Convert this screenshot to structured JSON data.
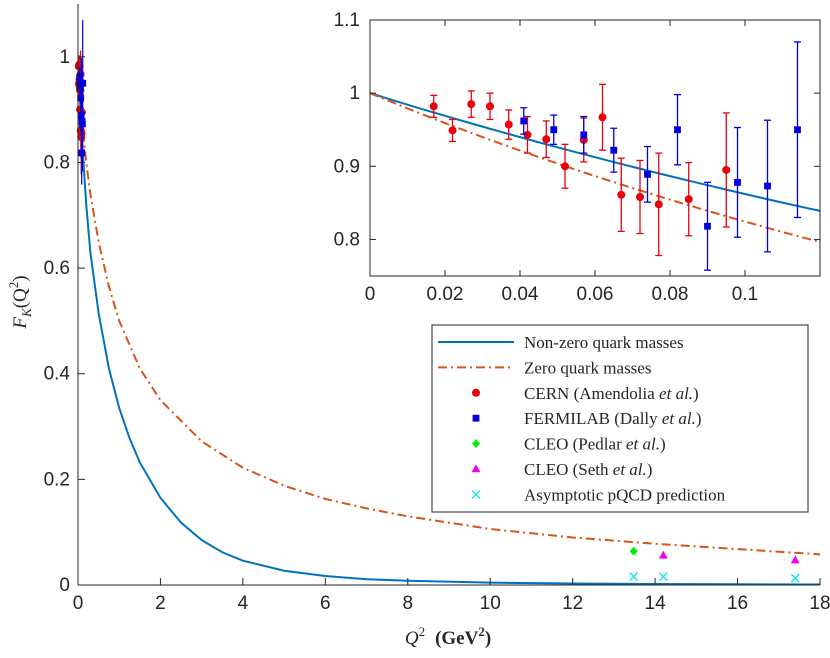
{
  "chart_data": [
    {
      "type": "line",
      "role": "main",
      "xlabel": "Q^2 (GeV^2)",
      "xlabel_parts": {
        "var": "Q",
        "exp": "2",
        "unit_open": "(GeV",
        "unit_exp": "2",
        "unit_close": ")"
      },
      "ylabel": "F_K(Q^2)",
      "ylabel_parts": {
        "f": "F",
        "sub": "K",
        "open": "(Q",
        "exp": "2",
        "close": ")"
      },
      "xlim": [
        0,
        18
      ],
      "ylim": [
        0,
        1.1
      ],
      "xticks": [
        0,
        2,
        4,
        6,
        8,
        10,
        12,
        14,
        16,
        18
      ],
      "xtick_labels": [
        "0",
        "2",
        "4",
        "6",
        "8",
        "10",
        "12",
        "14",
        "16",
        "18"
      ],
      "yticks": [
        0,
        0.2,
        0.4,
        0.6,
        0.8,
        1
      ],
      "ytick_labels": [
        "0",
        "0.2",
        "0.4",
        "0.6",
        "0.8",
        "1"
      ],
      "series": [
        {
          "name": "Non-zero quark masses",
          "style": "solid",
          "color": "#0072BD",
          "x": [
            0,
            0.1,
            0.2,
            0.3,
            0.5,
            0.75,
            1,
            1.25,
            1.5,
            2,
            2.5,
            3,
            3.5,
            4,
            5,
            6,
            7,
            8,
            10,
            12,
            14,
            16,
            18
          ],
          "y": [
            1,
            0.84,
            0.72,
            0.63,
            0.515,
            0.41,
            0.335,
            0.278,
            0.232,
            0.165,
            0.118,
            0.085,
            0.062,
            0.046,
            0.027,
            0.017,
            0.011,
            0.008,
            0.0045,
            0.0028,
            0.0019,
            0.0013,
            0.001
          ]
        },
        {
          "name": "Zero quark masses",
          "style": "dashdot",
          "color": "#D95319",
          "x": [
            0,
            0.1,
            0.2,
            0.3,
            0.5,
            0.75,
            1,
            1.5,
            2,
            3,
            4,
            5,
            6,
            7,
            8,
            10,
            12,
            14,
            16,
            18
          ],
          "y": [
            1,
            0.88,
            0.8,
            0.74,
            0.65,
            0.565,
            0.5,
            0.41,
            0.35,
            0.272,
            0.222,
            0.188,
            0.163,
            0.145,
            0.13,
            0.106,
            0.09,
            0.078,
            0.068,
            0.058
          ]
        }
      ],
      "data_points": [
        {
          "name": "CERN (Amendolia et al.)",
          "marker": "circle",
          "color": "#E8000B",
          "points": [
            [
              0.017,
              0.982
            ],
            [
              0.022,
              0.949
            ],
            [
              0.027,
              0.985
            ],
            [
              0.032,
              0.982
            ],
            [
              0.037,
              0.957
            ],
            [
              0.042,
              0.943
            ],
            [
              0.047,
              0.937
            ],
            [
              0.052,
              0.9
            ],
            [
              0.057,
              0.936
            ],
            [
              0.062,
              0.967
            ],
            [
              0.067,
              0.861
            ],
            [
              0.072,
              0.858
            ],
            [
              0.077,
              0.848
            ],
            [
              0.085,
              0.855
            ],
            [
              0.095,
              0.895
            ]
          ],
          "err": [
            0.015,
            0.015,
            0.018,
            0.018,
            0.02,
            0.025,
            0.025,
            0.03,
            0.03,
            0.045,
            0.05,
            0.05,
            0.07,
            0.05,
            0.078
          ]
        },
        {
          "name": "FERMILAB (Dally et al.)",
          "marker": "square",
          "color": "#0000E0",
          "points": [
            [
              0.041,
              0.962
            ],
            [
              0.049,
              0.95
            ],
            [
              0.057,
              0.943
            ],
            [
              0.065,
              0.922
            ],
            [
              0.074,
              0.889
            ],
            [
              0.082,
              0.95
            ],
            [
              0.09,
              0.818
            ],
            [
              0.098,
              0.878
            ],
            [
              0.106,
              0.873
            ],
            [
              0.114,
              0.95
            ]
          ],
          "err": [
            0.018,
            0.02,
            0.025,
            0.03,
            0.038,
            0.048,
            0.06,
            0.075,
            0.09,
            0.12
          ]
        },
        {
          "name": "CLEO (Pedlar et al.)",
          "marker": "diamond",
          "color": "#00EE00",
          "points": [
            [
              13.48,
              0.064
            ]
          ],
          "err": [
            0.006
          ]
        },
        {
          "name": "CLEO (Seth et al.)",
          "marker": "triangle",
          "color": "#EE00EE",
          "points": [
            [
              14.2,
              0.056
            ],
            [
              17.4,
              0.047
            ]
          ],
          "err": [
            0,
            0
          ]
        },
        {
          "name": "Asymptotic pQCD prediction",
          "marker": "x",
          "color": "#00E5EE",
          "points": [
            [
              13.48,
              0.016
            ],
            [
              14.2,
              0.016
            ],
            [
              17.4,
              0.013
            ]
          ],
          "err": [
            0,
            0,
            0
          ]
        }
      ],
      "legend": {
        "position": "lower-right",
        "entries": [
          {
            "key": "line-solid",
            "label": "Non-zero quark masses",
            "pre": "Non-zero quark masses",
            "ital": "",
            "post": ""
          },
          {
            "key": "line-dashdot",
            "label": "Zero quark masses",
            "pre": "Zero quark masses",
            "ital": "",
            "post": ""
          },
          {
            "key": "circle",
            "label": "CERN (Amendolia et al.)",
            "pre": "CERN (Amendolia ",
            "ital": "et al.",
            "post": ")"
          },
          {
            "key": "square",
            "label": "FERMILAB (Dally et al.)",
            "pre": "FERMILAB (Dally ",
            "ital": "et al.",
            "post": ")"
          },
          {
            "key": "diamond",
            "label": "CLEO (Pedlar et al.)",
            "pre": "CLEO (Pedlar ",
            "ital": "et al.",
            "post": ")"
          },
          {
            "key": "triangle",
            "label": "CLEO (Seth et al.)",
            "pre": "CLEO (Seth ",
            "ital": "et al.",
            "post": ")"
          },
          {
            "key": "x",
            "label": "Asymptotic pQCD prediction",
            "pre": "Asymptotic pQCD prediction",
            "ital": "",
            "post": ""
          }
        ]
      }
    },
    {
      "type": "line",
      "role": "inset",
      "xlim": [
        0,
        0.12
      ],
      "ylim": [
        0.75,
        1.1
      ],
      "xticks": [
        0,
        0.02,
        0.04,
        0.06,
        0.08,
        0.1
      ],
      "xtick_labels": [
        "0",
        "0.02",
        "0.04",
        "0.06",
        "0.08",
        "0.1"
      ],
      "yticks": [
        0.8,
        0.9,
        1,
        1.1
      ],
      "ytick_labels": [
        "0.8",
        "0.9",
        "1",
        "1.1"
      ],
      "series_note": "inset shows the same two curves and CERN/FERMILAB data at low Q^2"
    }
  ]
}
